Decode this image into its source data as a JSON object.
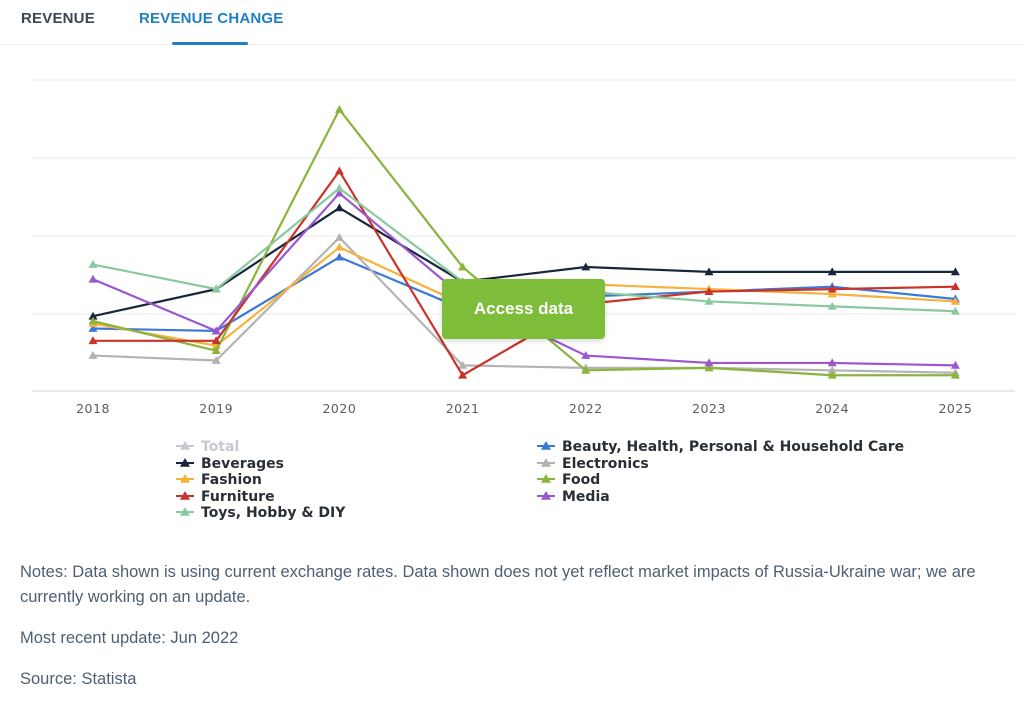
{
  "tabs": [
    {
      "label": "REVENUE",
      "active": false
    },
    {
      "label": "REVENUE CHANGE",
      "active": true
    }
  ],
  "chart_data": {
    "type": "line",
    "x": [
      "2018",
      "2019",
      "2020",
      "2021",
      "2022",
      "2023",
      "2024",
      "2025"
    ],
    "ylabel": "",
    "y_tick_labels_shown": false,
    "grid": true,
    "legend_position": "bottom",
    "series": [
      {
        "name": "Total",
        "color": "#c6c9cd",
        "visible": false,
        "values": null
      },
      {
        "name": "Beauty, Health, Personal & Household Care",
        "color": "#3c78d8",
        "visible": true,
        "values": [
          2.5,
          2.4,
          5.4,
          3.3,
          3.8,
          4.0,
          4.2,
          3.7
        ]
      },
      {
        "name": "Beverages",
        "color": "#17273b",
        "visible": true,
        "values": [
          3.0,
          4.1,
          7.4,
          4.4,
          5.0,
          4.8,
          4.8,
          4.8
        ]
      },
      {
        "name": "Electronics",
        "color": "#b3b3b3",
        "visible": true,
        "values": [
          1.4,
          1.2,
          6.2,
          1.0,
          0.9,
          0.9,
          0.8,
          0.7
        ]
      },
      {
        "name": "Fashion",
        "color": "#f6b13a",
        "visible": true,
        "values": [
          2.7,
          1.8,
          5.8,
          3.5,
          4.3,
          4.1,
          3.9,
          3.6
        ]
      },
      {
        "name": "Food",
        "color": "#8ab43c",
        "visible": true,
        "values": [
          2.8,
          1.6,
          11.4,
          5.0,
          0.8,
          0.9,
          0.6,
          0.6
        ]
      },
      {
        "name": "Furniture",
        "color": "#c9332a",
        "visible": true,
        "values": [
          2.0,
          2.0,
          8.9,
          0.6,
          3.5,
          4.0,
          4.1,
          4.2
        ]
      },
      {
        "name": "Media",
        "color": "#9a57d1",
        "visible": true,
        "values": [
          4.5,
          2.4,
          8.0,
          3.8,
          1.4,
          1.1,
          1.1,
          1.0
        ]
      },
      {
        "name": "Toys, Hobby & DIY",
        "color": "#8ac9a0",
        "visible": true,
        "values": [
          5.1,
          4.1,
          8.2,
          4.4,
          4.0,
          3.6,
          3.4,
          3.2
        ]
      }
    ]
  },
  "overlay": {
    "button_label": "Access data"
  },
  "notes": {
    "text": "Notes: Data shown is using current exchange rates. Data shown does not yet reflect market impacts of Russia-Ukraine war; we are currently working on an update.",
    "update": "Most recent update: Jun 2022",
    "source": "Source: Statista"
  }
}
